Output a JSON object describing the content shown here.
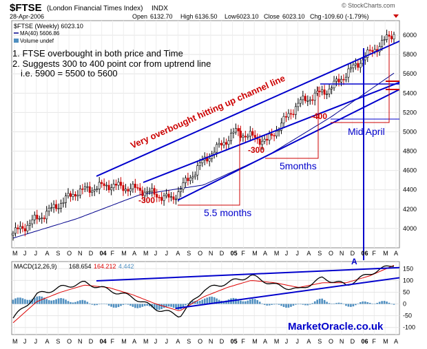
{
  "header": {
    "ticker": "$FTSE",
    "full_name": "(London Financial Times Index)",
    "exchange": "INDX",
    "date": "28-Apr-2006",
    "open_label": "Open",
    "open_value": "6132.70",
    "high_label": "High",
    "high_value": "6136.50",
    "low_label": "Low",
    "low_value": "6023.10",
    "close_label": "Close",
    "close_value": "6023.10",
    "chg_label": "Chg",
    "chg_value": "-109.60 (-1.79%)",
    "watermark": "© StockCharts.com"
  },
  "legend": {
    "series1": "$FTSE (Weekly) 6023.10",
    "series2": "MA(40) 5606.86",
    "series3": "Volume undef"
  },
  "notes": {
    "line1": "1. FTSE overbought in both price and Time",
    "line2": "2. Suggests 300 to 400 point cor from uptrend line",
    "line3": "i.e. 5900 = 5500 to 5600"
  },
  "annotations": {
    "overbought": "Very overbought hitting up channel line",
    "corr1": "-300",
    "corr2": "-300",
    "corr3": "-400",
    "months1": "5.5 months",
    "months2": "5months",
    "mid_april": "Mid April",
    "point_a": "A",
    "brand": "MarketOracle.co.uk"
  },
  "macd": {
    "label": "MACD(12,26,9)",
    "macd_value": "168.654",
    "signal_value": "164.212",
    "hist_value": "4.442"
  },
  "colors": {
    "price": "#000000",
    "ma": "#00008b",
    "channel": "#0000cc",
    "annotation_red": "#cc0000",
    "macd_line": "#000000",
    "signal_line": "#dd0000",
    "histogram": "#4f8fc0",
    "brand": "#0000cc"
  },
  "chart_data": {
    "type": "candlestick",
    "title": "$FTSE (London Financial Times Index) INDX",
    "y_ticks": [
      "4000",
      "4200",
      "4400",
      "4600",
      "4800",
      "5000",
      "5200",
      "5400",
      "5600",
      "5800",
      "6000"
    ],
    "ylim": [
      3800,
      6150
    ],
    "x_ticks": [
      "M",
      "J",
      "J",
      "A",
      "S",
      "O",
      "N",
      "D",
      "04",
      "F",
      "M",
      "A",
      "M",
      "J",
      "J",
      "A",
      "S",
      "O",
      "N",
      "D",
      "05",
      "F",
      "M",
      "A",
      "M",
      "J",
      "J",
      "A",
      "S",
      "O",
      "N",
      "D",
      "06",
      "F",
      "M",
      "A"
    ],
    "weekly_close_approx": {
      "x": [
        "2003-05",
        "2003-08",
        "2003-11",
        "2004-02",
        "2004-05",
        "2004-08",
        "2004-11",
        "2005-02",
        "2005-05",
        "2005-08",
        "2005-11",
        "2006-02",
        "2006-04"
      ],
      "close": [
        3950,
        4150,
        4380,
        4450,
        4400,
        4300,
        4700,
        5000,
        4900,
        5300,
        5450,
        5750,
        6023
      ]
    },
    "ma40_approx": {
      "x": [
        "2003-05",
        "2003-11",
        "2004-05",
        "2004-11",
        "2005-05",
        "2005-11",
        "2006-04"
      ],
      "value": [
        3900,
        4100,
        4350,
        4450,
        4750,
        5150,
        5607
      ]
    },
    "macd_panel": {
      "y_ticks": [
        "150",
        "100",
        "50",
        "0",
        "-50",
        "-100"
      ],
      "ylim": [
        -130,
        180
      ],
      "macd_approx": [
        -60,
        40,
        70,
        90,
        60,
        30,
        -20,
        -50,
        60,
        90,
        120,
        80,
        60,
        110,
        80,
        130,
        168
      ],
      "signal_approx": [
        -80,
        10,
        50,
        80,
        70,
        40,
        0,
        -30,
        30,
        70,
        100,
        90,
        70,
        90,
        90,
        120,
        164
      ]
    }
  }
}
